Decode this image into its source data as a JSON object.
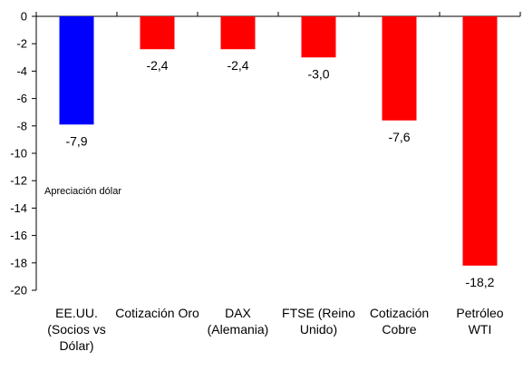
{
  "chart_data": {
    "type": "bar",
    "categories": [
      [
        "EE.UU.",
        "(Socios vs",
        "Dólar)"
      ],
      [
        "Cotización Oro"
      ],
      [
        "DAX",
        "(Alemania)"
      ],
      [
        "FTSE (Reino",
        "Unido)"
      ],
      [
        "Cotización",
        "Cobre"
      ],
      [
        "Petróleo",
        "WTI"
      ]
    ],
    "values": [
      -7.9,
      -2.4,
      -2.4,
      -3.0,
      -7.6,
      -18.2
    ],
    "value_labels": [
      "-7,9",
      "-2,4",
      "-2,4",
      "-3,0",
      "-7,6",
      "-18,2"
    ],
    "bar_colors": [
      "#0000ff",
      "#ff0000",
      "#ff0000",
      "#ff0000",
      "#ff0000",
      "#ff0000"
    ],
    "ylim": [
      -20,
      0
    ],
    "yticks": [
      0,
      -2,
      -4,
      -6,
      -8,
      -10,
      -12,
      -14,
      -16,
      -18,
      -20
    ],
    "ytick_labels": [
      "0",
      "-2",
      "-4",
      "-6",
      "-8",
      "-10",
      "-12",
      "-14",
      "-16",
      "-18",
      "-20"
    ],
    "annotation": "Apreciación dólar",
    "grid": false,
    "xlabel": "",
    "ylabel": ""
  }
}
